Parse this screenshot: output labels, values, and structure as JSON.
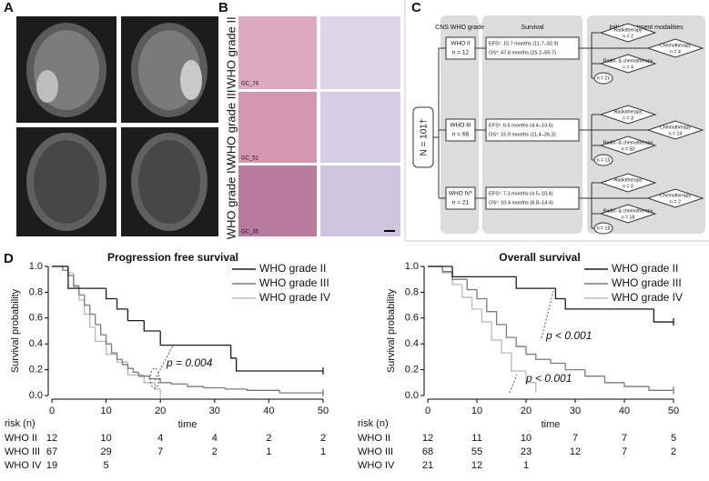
{
  "labels": [
    "A",
    "B",
    "C",
    "D"
  ],
  "panel_b": {
    "rows": [
      "WHO grade II",
      "WHO grade III",
      "WHO grade IV"
    ],
    "sample_ids": [
      "GC_74",
      "GC_51",
      "GC_35"
    ]
  },
  "panel_c": {
    "headers": [
      "CNS WHO grade",
      "Survival",
      "Initial treatment modalities"
    ],
    "total": "N = 101†",
    "rows": [
      {
        "grade": "WHO II",
        "n": "n = 12",
        "efs": "EFS¹: 15.7 months (11.7–32.9)",
        "os": "OS¹: 47.8 months (25.2–55.7)",
        "radio": "Radiotherapy",
        "radio_n": "n = 2",
        "chemo": "Chemotherapy",
        "chemo_n": "n = 4",
        "both": "Radio- & chemotherapy",
        "both_n": "n = 4",
        "other_n": "n = 2‡"
      },
      {
        "grade": "WHO III",
        "n": "n = 68",
        "efs": "EFS¹: 6.6 months (4.4–13.6)",
        "os": "OS¹: 15.9 months (11.4–26.3)",
        "radio": "Radiotherapy",
        "radio_n": "n = 3",
        "chemo": "Chemotherapy",
        "chemo_n": "n = 14",
        "both": "Radio- & chemotherapy",
        "both_n": "n = 50",
        "other_n": "n = 1§"
      },
      {
        "grade": "WHO IV*",
        "n": "n = 21",
        "efs": "EFS¹: 7.3 months (4.5–10.4)",
        "os": "OS¹: 10.4 months (6.8–14.4)",
        "radio": "Radiotherapy",
        "radio_n": "n = 0",
        "chemo": "Chemotherapy",
        "chemo_n": "n = 2",
        "both": "Radio- & chemotherapy",
        "both_n": "n = 18",
        "other_n": "n = 1§"
      }
    ]
  },
  "chart_data": [
    {
      "type": "step",
      "title": "Progression free survival",
      "xlabel": "time",
      "ylabel": "Survival probability",
      "xlim": [
        0,
        50
      ],
      "ylim": [
        0,
        1
      ],
      "xticks": [
        0,
        10,
        20,
        30,
        40,
        50
      ],
      "yticks": [
        {
          "value": 0,
          "label": "0.0"
        },
        {
          "value": 0.2,
          "label": "0.2"
        },
        {
          "value": 0.4,
          "label": "0.4"
        },
        {
          "value": 0.6,
          "label": "0.6"
        },
        {
          "value": 0.8,
          "label": "0.8"
        },
        {
          "value": 1,
          "label": "1.0"
        }
      ],
      "series": [
        {
          "name": "WHO grade II",
          "color": "#1a1a1a",
          "x": [
            0,
            3,
            10,
            12,
            14,
            17,
            20,
            33,
            34,
            50
          ],
          "values": [
            1,
            0.83,
            0.75,
            0.67,
            0.58,
            0.5,
            0.39,
            0.29,
            0.19,
            0.19
          ]
        },
        {
          "name": "WHO grade III",
          "color": "#7a7a7a",
          "x": [
            0,
            2,
            3,
            4,
            5,
            6,
            7,
            8,
            9,
            10,
            11,
            12,
            13,
            14,
            15,
            16,
            18,
            20,
            22,
            25,
            28,
            32,
            36,
            42,
            50
          ],
          "values": [
            1,
            0.97,
            0.93,
            0.85,
            0.78,
            0.7,
            0.63,
            0.55,
            0.47,
            0.4,
            0.33,
            0.28,
            0.24,
            0.21,
            0.18,
            0.15,
            0.13,
            0.1,
            0.09,
            0.07,
            0.06,
            0.05,
            0.04,
            0.02,
            0.02
          ]
        },
        {
          "name": "WHO grade IV",
          "color": "#b8b8b8",
          "x": [
            0,
            3,
            4,
            5,
            6,
            7,
            8,
            10,
            12,
            14,
            17,
            19,
            20
          ],
          "values": [
            1,
            0.95,
            0.84,
            0.74,
            0.63,
            0.53,
            0.42,
            0.32,
            0.26,
            0.16,
            0.1,
            0.05,
            0
          ]
        }
      ],
      "annotations": [
        "p = 0.004"
      ],
      "risk_table": {
        "title": "risk (n)",
        "labels": [
          "WHO II",
          "WHO III",
          "WHO IV"
        ],
        "rows": [
          [
            12,
            10,
            4,
            4,
            2,
            2
          ],
          [
            67,
            29,
            7,
            2,
            1,
            1
          ],
          [
            19,
            5
          ]
        ]
      }
    },
    {
      "type": "step",
      "title": "Overall survival",
      "xlabel": "time",
      "ylabel": "Survival probability",
      "xlim": [
        0,
        50
      ],
      "ylim": [
        0,
        1
      ],
      "xticks": [
        0,
        10,
        20,
        30,
        40,
        50
      ],
      "yticks": [
        {
          "value": 0,
          "label": "0.0"
        },
        {
          "value": 0.2,
          "label": "0.2"
        },
        {
          "value": 0.4,
          "label": "0.4"
        },
        {
          "value": 0.6,
          "label": "0.6"
        },
        {
          "value": 0.8,
          "label": "0.8"
        },
        {
          "value": 1,
          "label": "1.0"
        }
      ],
      "series": [
        {
          "name": "WHO grade II",
          "color": "#1a1a1a",
          "x": [
            0,
            5,
            18,
            26,
            28,
            46,
            50
          ],
          "values": [
            1,
            0.92,
            0.83,
            0.75,
            0.67,
            0.57,
            0.57
          ]
        },
        {
          "name": "WHO grade III",
          "color": "#7a7a7a",
          "x": [
            0,
            3,
            5,
            8,
            10,
            12,
            14,
            16,
            18,
            20,
            22,
            25,
            28,
            32,
            36,
            40,
            45,
            50
          ],
          "values": [
            1,
            0.96,
            0.9,
            0.82,
            0.75,
            0.65,
            0.55,
            0.45,
            0.38,
            0.32,
            0.28,
            0.25,
            0.2,
            0.15,
            0.1,
            0.07,
            0.04,
            0.04
          ]
        },
        {
          "name": "WHO grade IV",
          "color": "#b8b8b8",
          "x": [
            0,
            3,
            5,
            7,
            9,
            11,
            13,
            15,
            17,
            20,
            22
          ],
          "values": [
            1,
            0.95,
            0.86,
            0.76,
            0.67,
            0.57,
            0.43,
            0.33,
            0.19,
            0.1,
            0.05
          ]
        }
      ],
      "annotations": [
        "p < 0.001",
        "p < 0.001"
      ],
      "risk_table": {
        "title": "risk (n)",
        "labels": [
          "WHO II",
          "WHO III",
          "WHO IV"
        ],
        "rows": [
          [
            12,
            11,
            10,
            7,
            7,
            5
          ],
          [
            68,
            55,
            23,
            12,
            7,
            2
          ],
          [
            21,
            12,
            1
          ]
        ]
      }
    }
  ]
}
